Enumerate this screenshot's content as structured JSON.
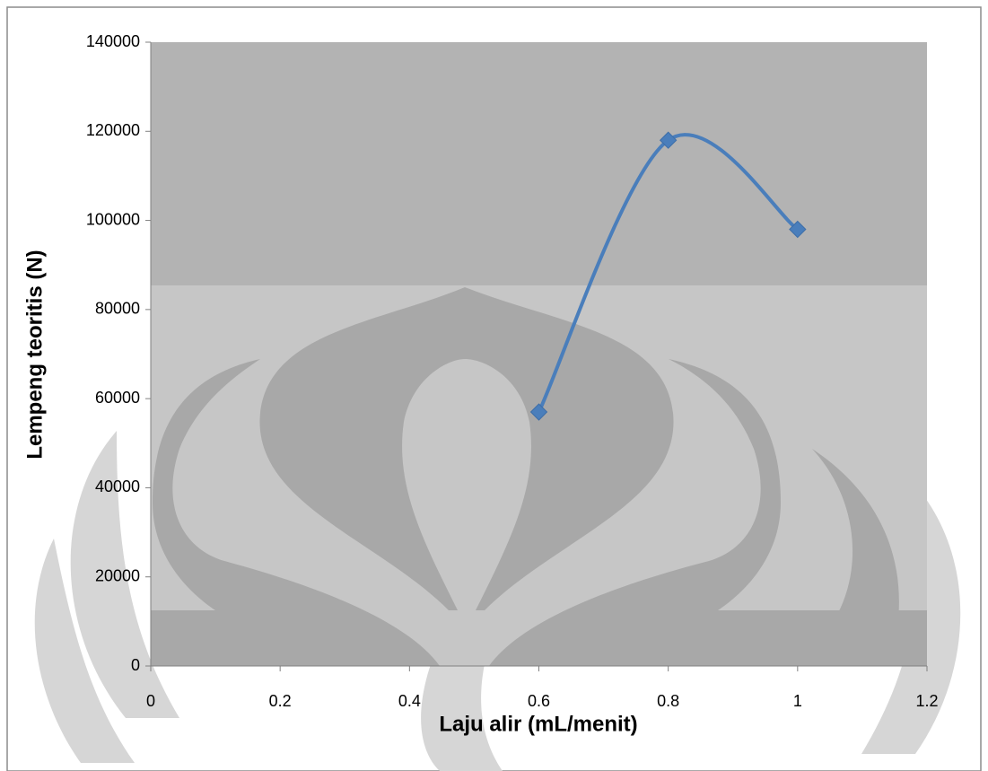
{
  "chart_data": {
    "type": "scatter-smooth",
    "x_label": "Laju alir (mL/menit)",
    "y_label": "Lempeng teoritis (N)",
    "series": [
      {
        "color": "#4a7ebb",
        "x": [
          0.6,
          0.8,
          1
        ],
        "values": [
          57000,
          118000,
          98000
        ]
      }
    ],
    "xlim": [
      0,
      1.2
    ],
    "xticks": [
      0,
      0.2,
      0.4,
      0.6,
      0.8,
      1,
      1.2
    ],
    "ylim": [
      0,
      140000
    ],
    "yticks": [
      0,
      20000,
      40000,
      60000,
      80000,
      100000,
      120000,
      140000
    ],
    "grid": false
  }
}
